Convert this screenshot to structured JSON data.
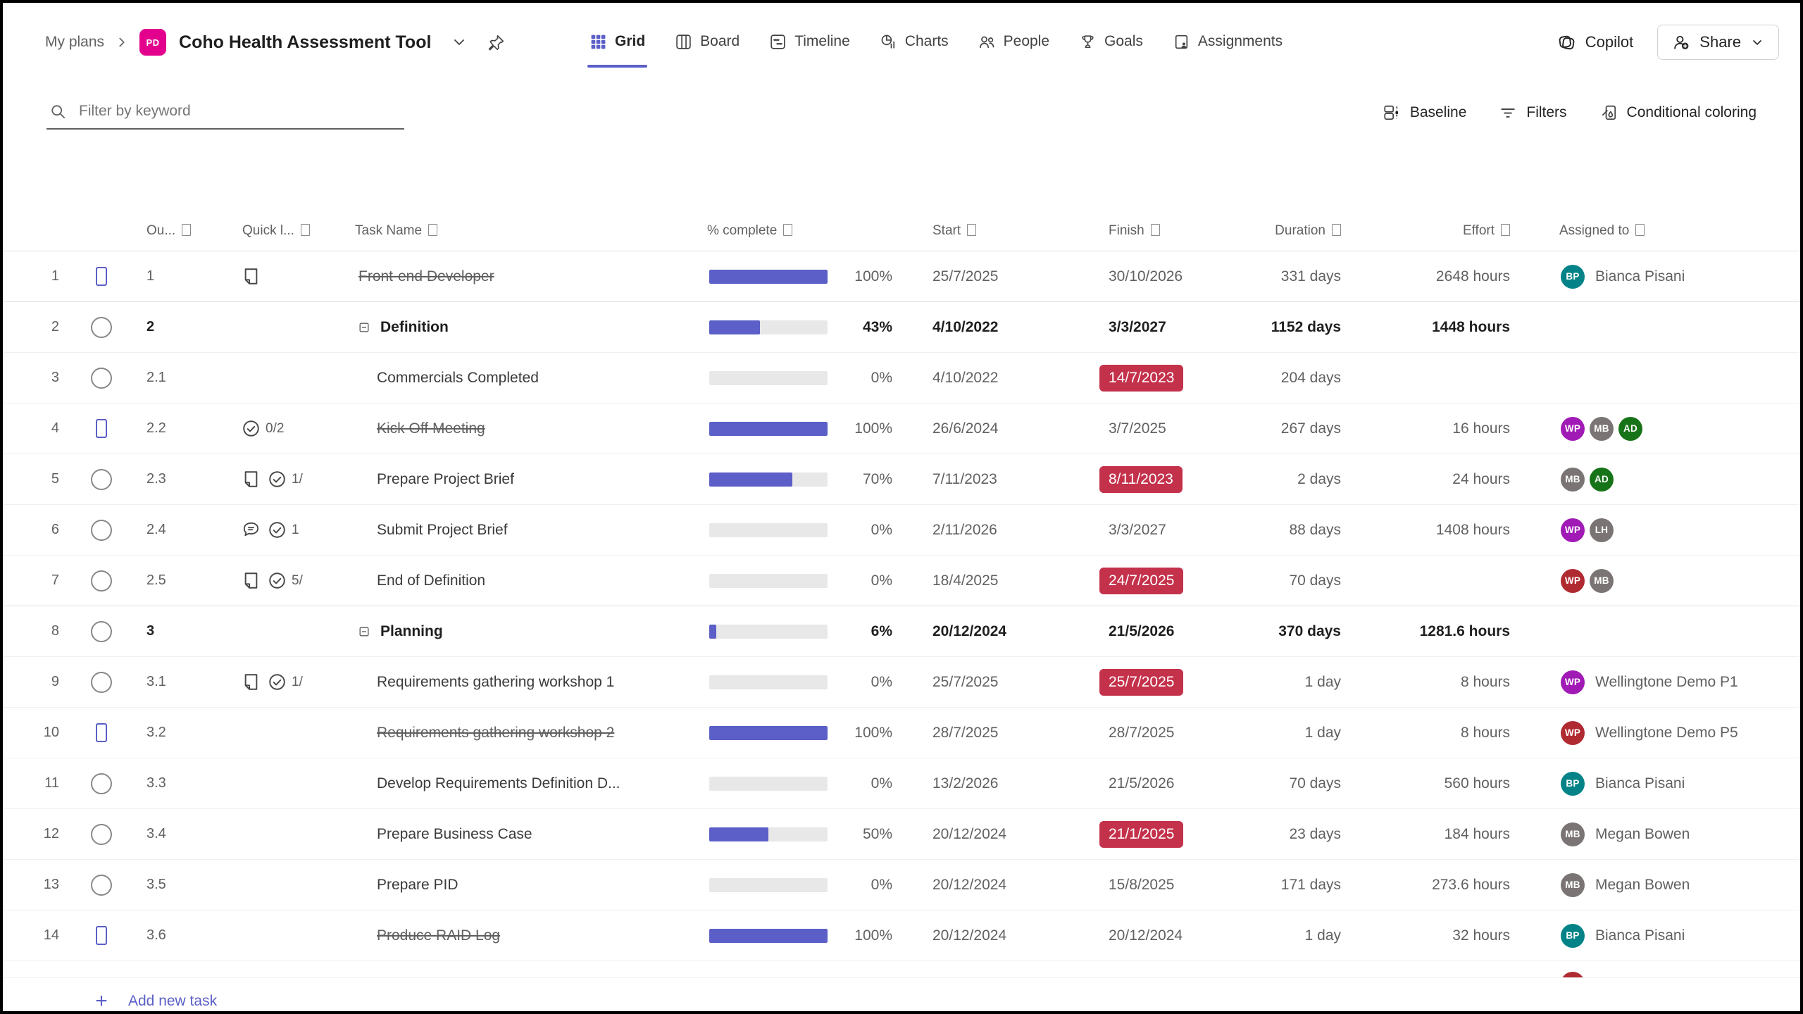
{
  "breadcrumb": {
    "root": "My plans",
    "plan_icon_text": "PD",
    "plan_title": "Coho Health Assessment Tool"
  },
  "tabs": [
    {
      "label": "Grid",
      "active": true
    },
    {
      "label": "Board",
      "active": false
    },
    {
      "label": "Timeline",
      "active": false
    },
    {
      "label": "Charts",
      "active": false
    },
    {
      "label": "People",
      "active": false
    },
    {
      "label": "Goals",
      "active": false
    },
    {
      "label": "Assignments",
      "active": false
    }
  ],
  "top_actions": {
    "copilot": "Copilot",
    "share": "Share"
  },
  "toolbar": {
    "search_placeholder": "Filter by keyword",
    "baseline": "Baseline",
    "filters": "Filters",
    "conditional_coloring": "Conditional coloring"
  },
  "columns": {
    "outline": "Ou...",
    "quick_look": "Quick l...",
    "task_name": "Task Name",
    "percent_complete": "% complete",
    "start": "Start",
    "finish": "Finish",
    "duration": "Duration",
    "effort": "Effort",
    "assigned_to": "Assigned to"
  },
  "colors": {
    "accent": "#5b5fc7",
    "overdue_badge": "#c4314b",
    "plan_icon": "#e3008c",
    "avatar_palette": {
      "teal": "#038387",
      "purple": "#a01bb5",
      "gray": "#7a7574",
      "green": "#177317",
      "red": "#b02a31"
    }
  },
  "tasks": [
    {
      "num": "1",
      "done": true,
      "outline": "1",
      "level": 1,
      "summary": false,
      "quick": [
        {
          "icon": "note"
        }
      ],
      "name": "Front-end Developer",
      "struck": true,
      "pct": 100,
      "start": "25/7/2025",
      "finish": "30/10/2026",
      "overdue": false,
      "duration": "331 days",
      "effort": "2648 hours",
      "avatars": [
        {
          "i": "BP",
          "c": "teal"
        }
      ],
      "assignee": "Bianca Pisani"
    },
    {
      "num": "2",
      "done": false,
      "outline": "2",
      "level": 1,
      "summary": true,
      "quick": [],
      "name": "Definition",
      "struck": false,
      "pct": 43,
      "start": "4/10/2022",
      "finish": "3/3/2027",
      "overdue": false,
      "duration": "1152 days",
      "effort": "1448 hours",
      "avatars": [],
      "assignee": ""
    },
    {
      "num": "3",
      "done": false,
      "outline": "2.1",
      "level": 2,
      "summary": false,
      "quick": [],
      "name": "Commercials Completed",
      "struck": false,
      "pct": 0,
      "start": "4/10/2022",
      "finish": "14/7/2023",
      "overdue": true,
      "duration": "204 days",
      "effort": "",
      "avatars": [],
      "assignee": ""
    },
    {
      "num": "4",
      "done": true,
      "outline": "2.2",
      "level": 2,
      "summary": false,
      "quick": [
        {
          "icon": "check",
          "label": "0/2"
        }
      ],
      "name": "Kick Off Meeting",
      "struck": true,
      "pct": 100,
      "start": "26/6/2024",
      "finish": "3/7/2025",
      "overdue": false,
      "duration": "267 days",
      "effort": "16 hours",
      "avatars": [
        {
          "i": "WP",
          "c": "purple"
        },
        {
          "i": "MB",
          "c": "gray"
        },
        {
          "i": "AD",
          "c": "green"
        }
      ],
      "assignee": ""
    },
    {
      "num": "5",
      "done": false,
      "outline": "2.3",
      "level": 2,
      "summary": false,
      "quick": [
        {
          "icon": "note"
        },
        {
          "icon": "check",
          "label": "1/"
        }
      ],
      "name": "Prepare Project Brief",
      "struck": false,
      "pct": 70,
      "start": "7/11/2023",
      "finish": "8/11/2023",
      "overdue": true,
      "duration": "2 days",
      "effort": "24 hours",
      "avatars": [
        {
          "i": "MB",
          "c": "gray"
        },
        {
          "i": "AD",
          "c": "green"
        }
      ],
      "assignee": ""
    },
    {
      "num": "6",
      "done": false,
      "outline": "2.4",
      "level": 2,
      "summary": false,
      "quick": [
        {
          "icon": "comment"
        },
        {
          "icon": "check",
          "label": "1"
        }
      ],
      "name": "Submit Project Brief",
      "struck": false,
      "pct": 0,
      "start": "2/11/2026",
      "finish": "3/3/2027",
      "overdue": false,
      "duration": "88 days",
      "effort": "1408 hours",
      "avatars": [
        {
          "i": "WP",
          "c": "purple"
        },
        {
          "i": "LH",
          "c": "gray"
        }
      ],
      "assignee": ""
    },
    {
      "num": "7",
      "done": false,
      "outline": "2.5",
      "level": 2,
      "summary": false,
      "quick": [
        {
          "icon": "note"
        },
        {
          "icon": "check",
          "label": "5/"
        }
      ],
      "name": "End of Definition",
      "struck": false,
      "pct": 0,
      "start": "18/4/2025",
      "finish": "24/7/2025",
      "overdue": true,
      "duration": "70 days",
      "effort": "",
      "avatars": [
        {
          "i": "WP",
          "c": "red"
        },
        {
          "i": "MB",
          "c": "gray"
        }
      ],
      "assignee": ""
    },
    {
      "num": "8",
      "done": false,
      "outline": "3",
      "level": 1,
      "summary": true,
      "quick": [],
      "name": "Planning",
      "struck": false,
      "pct": 6,
      "start": "20/12/2024",
      "finish": "21/5/2026",
      "overdue": false,
      "duration": "370 days",
      "effort": "1281.6 hours",
      "avatars": [],
      "assignee": ""
    },
    {
      "num": "9",
      "done": false,
      "outline": "3.1",
      "level": 2,
      "summary": false,
      "quick": [
        {
          "icon": "note"
        },
        {
          "icon": "check",
          "label": "1/"
        }
      ],
      "name": "Requirements gathering workshop 1",
      "struck": false,
      "pct": 0,
      "start": "25/7/2025",
      "finish": "25/7/2025",
      "overdue": true,
      "duration": "1 day",
      "effort": "8 hours",
      "avatars": [
        {
          "i": "WP",
          "c": "purple"
        }
      ],
      "assignee": "Wellingtone Demo P1"
    },
    {
      "num": "10",
      "done": true,
      "outline": "3.2",
      "level": 2,
      "summary": false,
      "quick": [],
      "name": "Requirements gathering workshop 2",
      "struck": true,
      "pct": 100,
      "start": "28/7/2025",
      "finish": "28/7/2025",
      "overdue": false,
      "duration": "1 day",
      "effort": "8 hours",
      "avatars": [
        {
          "i": "WP",
          "c": "red"
        }
      ],
      "assignee": "Wellingtone Demo P5"
    },
    {
      "num": "11",
      "done": false,
      "outline": "3.3",
      "level": 2,
      "summary": false,
      "quick": [],
      "name": "Develop Requirements Definition D...",
      "struck": false,
      "pct": 0,
      "start": "13/2/2026",
      "finish": "21/5/2026",
      "overdue": false,
      "duration": "70 days",
      "effort": "560 hours",
      "avatars": [
        {
          "i": "BP",
          "c": "teal"
        }
      ],
      "assignee": "Bianca Pisani"
    },
    {
      "num": "12",
      "done": false,
      "outline": "3.4",
      "level": 2,
      "summary": false,
      "quick": [],
      "name": "Prepare Business Case",
      "struck": false,
      "pct": 50,
      "start": "20/12/2024",
      "finish": "21/1/2025",
      "overdue": true,
      "duration": "23 days",
      "effort": "184 hours",
      "avatars": [
        {
          "i": "MB",
          "c": "gray"
        }
      ],
      "assignee": "Megan Bowen"
    },
    {
      "num": "13",
      "done": false,
      "outline": "3.5",
      "level": 2,
      "summary": false,
      "quick": [],
      "name": "Prepare PID",
      "struck": false,
      "pct": 0,
      "start": "20/12/2024",
      "finish": "15/8/2025",
      "overdue": false,
      "duration": "171 days",
      "effort": "273.6 hours",
      "avatars": [
        {
          "i": "MB",
          "c": "gray"
        }
      ],
      "assignee": "Megan Bowen"
    },
    {
      "num": "14",
      "done": true,
      "outline": "3.6",
      "level": 2,
      "summary": false,
      "quick": [],
      "name": "Produce RAID Log",
      "struck": true,
      "pct": 100,
      "start": "20/12/2024",
      "finish": "20/12/2024",
      "overdue": false,
      "duration": "1 day",
      "effort": "32 hours",
      "avatars": [
        {
          "i": "BP",
          "c": "teal"
        }
      ],
      "assignee": "Bianca Pisani"
    }
  ],
  "partial_row": {
    "avatar_color": "red",
    "avatar_initials": ""
  },
  "footer": {
    "add_new_task": "Add new task"
  }
}
